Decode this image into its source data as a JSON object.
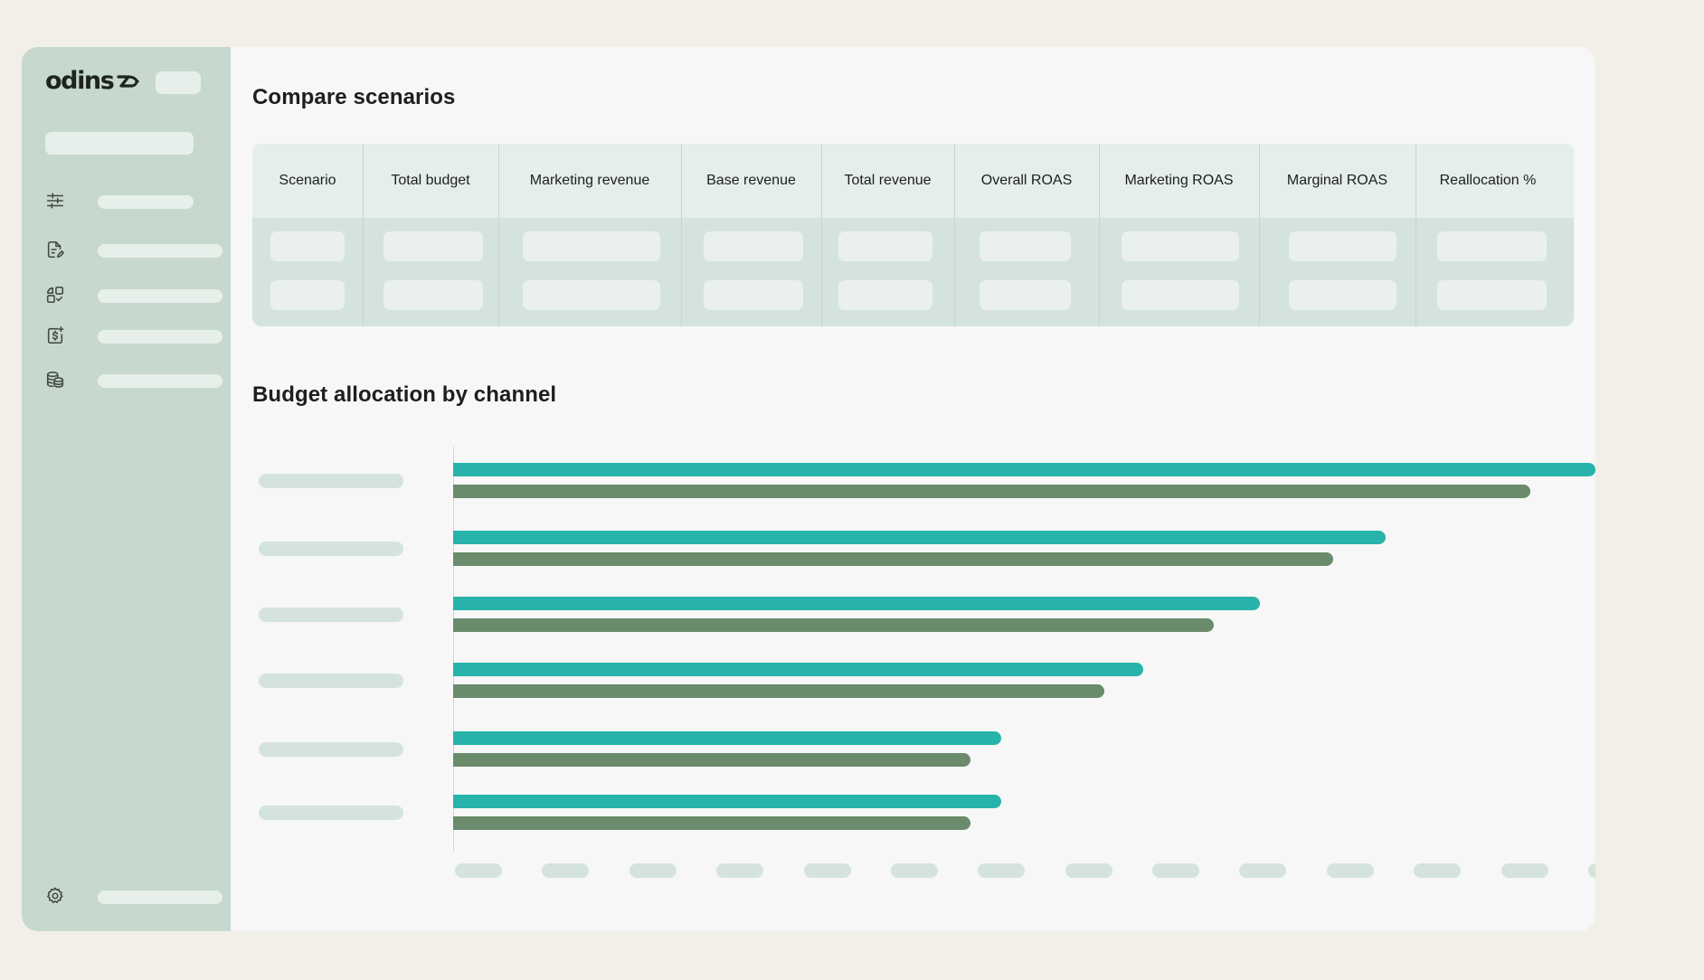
{
  "brand": {
    "logo_text": "odins"
  },
  "sidebar": {
    "nav_items": [
      {
        "icon": "sliders-icon"
      },
      {
        "icon": "document-edit-icon"
      },
      {
        "icon": "shapes-icon"
      },
      {
        "icon": "dollar-doc-icon"
      },
      {
        "icon": "database-coins-icon"
      }
    ],
    "footer_icon": "gear-icon"
  },
  "compare": {
    "title": "Compare scenarios",
    "columns": [
      "Scenario",
      "Total budget",
      "Marketing revenue",
      "Base revenue",
      "Total revenue",
      "Overall ROAS",
      "Marketing ROAS",
      "Marginal ROAS",
      "Reallocation %"
    ]
  },
  "allocation": {
    "title": "Budget allocation by channel"
  },
  "colors": {
    "series_a": "#27b3a9",
    "series_b": "#6a8b6c",
    "sidebar": "#c7d8ce",
    "skeleton": "#d5e3dd"
  },
  "chart_data": {
    "type": "bar",
    "orientation": "horizontal",
    "categories": [
      "",
      "",
      "",
      "",
      "",
      ""
    ],
    "series": [
      {
        "values": [
          100,
          81.6,
          70.6,
          60.4,
          48.0,
          48.0
        ]
      },
      {
        "values": [
          94.3,
          77.0,
          66.6,
          57.0,
          45.3,
          45.3
        ]
      }
    ],
    "xlim": [
      0,
      100
    ],
    "xticks_count": 14,
    "grid": false,
    "legend": "none"
  }
}
